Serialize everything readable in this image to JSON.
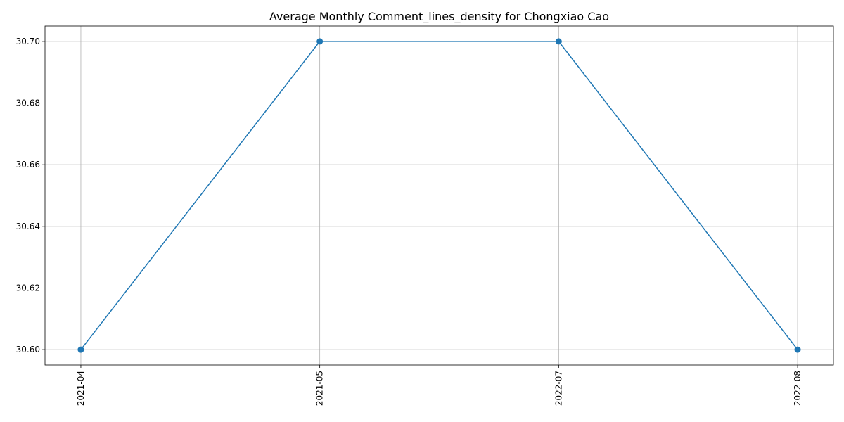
{
  "chart_data": {
    "type": "line",
    "title": "Average Monthly Comment_lines_density for Chongxiao Cao",
    "xlabel": "",
    "ylabel": "",
    "categories": [
      "2021-04",
      "2021-05",
      "2022-07",
      "2022-08"
    ],
    "series": [
      {
        "values": [
          30.6,
          30.7,
          30.7,
          30.6
        ],
        "color": "#1f77b4",
        "marker": "circle"
      }
    ],
    "ylim": [
      30.595,
      30.705
    ],
    "yticks": [
      "30.60",
      "30.62",
      "30.64",
      "30.66",
      "30.68",
      "30.70"
    ],
    "grid": true,
    "x_tick_rotation": "vertical"
  }
}
